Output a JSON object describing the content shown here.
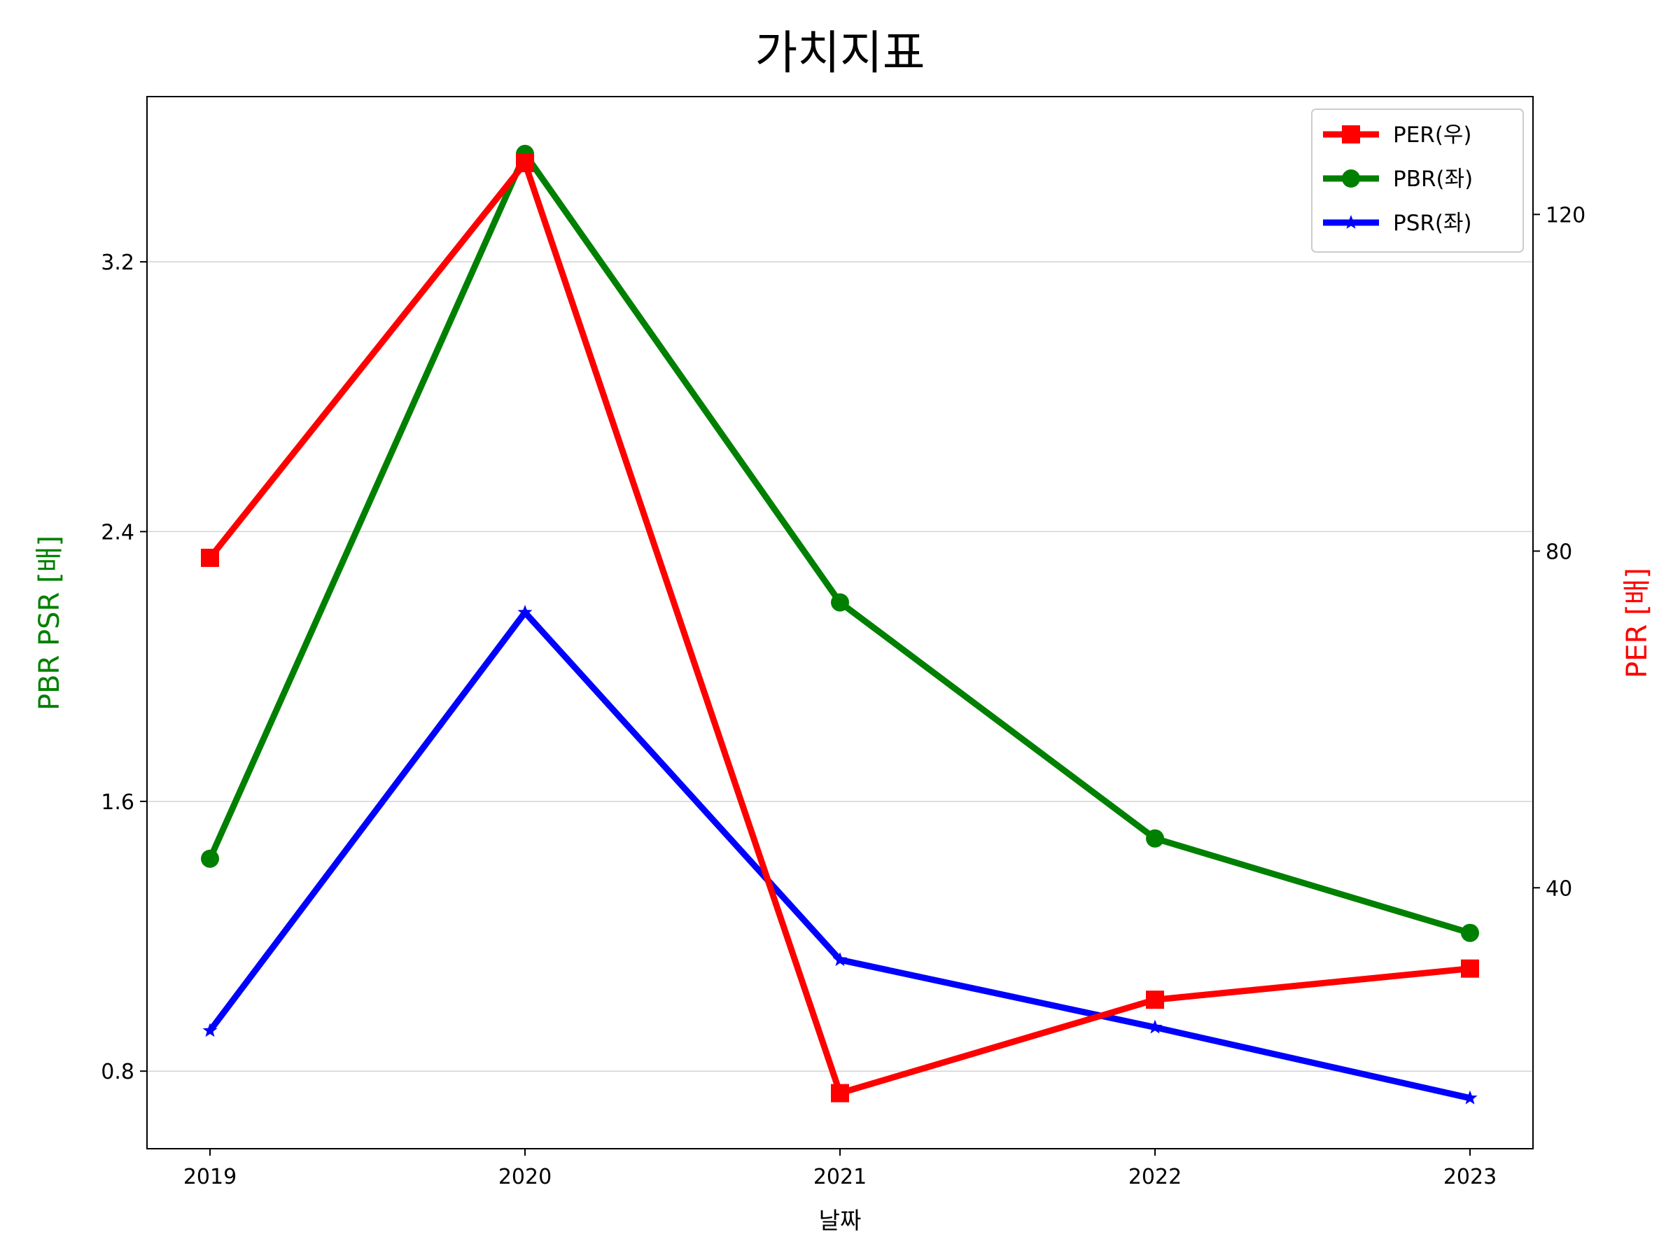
{
  "chart_data": {
    "type": "line",
    "title": "가치지표",
    "xlabel": "날짜",
    "ylabel_left": "PBR PSR [배]",
    "ylabel_right": "PER [배]",
    "categories": [
      "2019",
      "2020",
      "2021",
      "2022",
      "2023"
    ],
    "left_axis": {
      "range": [
        0.57,
        3.69
      ],
      "ticks": [
        0.8,
        1.6,
        2.4,
        3.2
      ],
      "tick_labels": [
        "0.8",
        "1.6",
        "2.4",
        "3.2"
      ]
    },
    "right_axis": {
      "range": [
        9,
        134
      ],
      "ticks": [
        40,
        80,
        120
      ],
      "tick_labels": [
        "40",
        "80",
        "120"
      ]
    },
    "grid": "horizontal (left axis)",
    "legend_position": "top-right",
    "series": [
      {
        "name": "PER(우)",
        "axis": "right",
        "color": "#ff0000",
        "marker": "square",
        "values": [
          79.2,
          126.1,
          15.6,
          26.7,
          30.4
        ]
      },
      {
        "name": "PBR(좌)",
        "axis": "left",
        "color": "#008000",
        "marker": "circle",
        "values": [
          1.43,
          3.52,
          2.19,
          1.49,
          1.21
        ]
      },
      {
        "name": "PSR(좌)",
        "axis": "left",
        "color": "#0000ff",
        "marker": "star",
        "values": [
          0.92,
          2.16,
          1.13,
          0.93,
          0.72
        ]
      }
    ],
    "label_colors": {
      "left": "#008000",
      "right": "#ff0000"
    }
  }
}
